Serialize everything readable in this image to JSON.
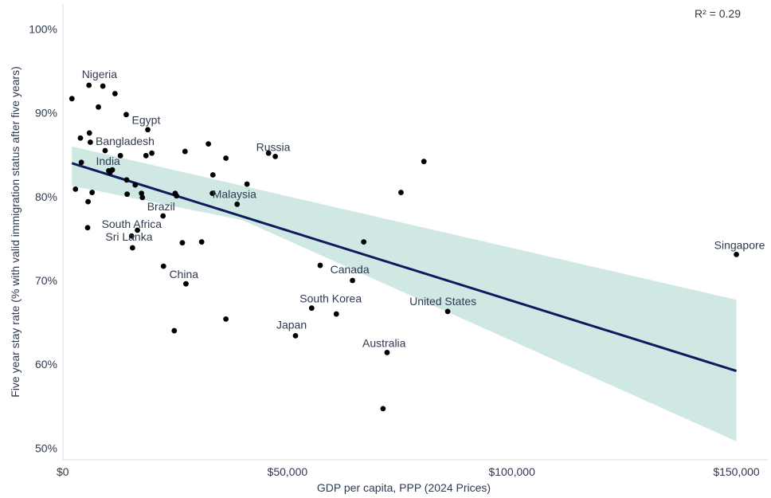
{
  "chart_data": {
    "type": "scatter",
    "xlabel": "GDP per capita, PPP (2024 Prices)",
    "ylabel": "Five year stay rate (% with valid immigration status after five years)",
    "annotation": "R² = 0.29",
    "xlim": [
      0,
      157000
    ],
    "ylim": [
      48.6,
      103.0
    ],
    "x_ticks": [
      0,
      50000,
      100000,
      150000
    ],
    "x_tick_labels": [
      "$0",
      "$50,000",
      "$100,000",
      "$150,000"
    ],
    "y_ticks": [
      50,
      60,
      70,
      80,
      90,
      100
    ],
    "y_tick_labels": [
      "50%",
      "60%",
      "70%",
      "80%",
      "90%",
      "100%"
    ],
    "grid": false,
    "colors": {
      "points": "#000000",
      "trend_line": "#0d1b5c",
      "confidence_band": "#cfe8e4",
      "text": "#2e3a4f",
      "axis": "#d9d9d9"
    },
    "trend": {
      "x": [
        2000,
        150000
      ],
      "y": [
        84.0,
        59.2
      ]
    },
    "band": {
      "x": [
        2000,
        40000,
        150000
      ],
      "upper": [
        86.0,
        81.3,
        67.7
      ],
      "lower": [
        81.3,
        77.2,
        50.8
      ]
    },
    "points": [
      {
        "x": 2000,
        "y": 91.7
      },
      {
        "x": 2800,
        "y": 80.9
      },
      {
        "x": 3900,
        "y": 87.0
      },
      {
        "x": 4100,
        "y": 84.1
      },
      {
        "x": 5500,
        "y": 76.3
      },
      {
        "x": 5600,
        "y": 79.4
      },
      {
        "x": 5800,
        "y": 93.3,
        "label": "Nigeria"
      },
      {
        "x": 5900,
        "y": 87.6
      },
      {
        "x": 6100,
        "y": 86.5
      },
      {
        "x": 6500,
        "y": 80.5
      },
      {
        "x": 7900,
        "y": 90.7
      },
      {
        "x": 8900,
        "y": 93.2
      },
      {
        "x": 9400,
        "y": 85.5,
        "label": "Bangladesh"
      },
      {
        "x": 10200,
        "y": 83.1,
        "label": "India"
      },
      {
        "x": 10500,
        "y": 82.9
      },
      {
        "x": 11000,
        "y": 83.2
      },
      {
        "x": 11600,
        "y": 92.3
      },
      {
        "x": 12800,
        "y": 84.9
      },
      {
        "x": 14100,
        "y": 89.8
      },
      {
        "x": 14200,
        "y": 82.0
      },
      {
        "x": 14300,
        "y": 80.3
      },
      {
        "x": 15300,
        "y": 75.3
      },
      {
        "x": 15500,
        "y": 73.9,
        "label": "Sri Lanka"
      },
      {
        "x": 16100,
        "y": 81.4
      },
      {
        "x": 16600,
        "y": 76.0,
        "label": "South Africa"
      },
      {
        "x": 17500,
        "y": 80.4
      },
      {
        "x": 17700,
        "y": 79.9
      },
      {
        "x": 18500,
        "y": 84.9
      },
      {
        "x": 18900,
        "y": 88.0,
        "label": "Egypt"
      },
      {
        "x": 19800,
        "y": 85.2
      },
      {
        "x": 22300,
        "y": 77.7,
        "label": "Brazil"
      },
      {
        "x": 22400,
        "y": 71.7
      },
      {
        "x": 24800,
        "y": 64.0
      },
      {
        "x": 25000,
        "y": 80.4
      },
      {
        "x": 25300,
        "y": 80.1
      },
      {
        "x": 26600,
        "y": 74.5
      },
      {
        "x": 27200,
        "y": 85.4
      },
      {
        "x": 27400,
        "y": 69.6,
        "label": "China"
      },
      {
        "x": 30900,
        "y": 74.6
      },
      {
        "x": 32400,
        "y": 86.3
      },
      {
        "x": 33300,
        "y": 80.4
      },
      {
        "x": 33400,
        "y": 82.6
      },
      {
        "x": 36300,
        "y": 84.6
      },
      {
        "x": 36300,
        "y": 65.4
      },
      {
        "x": 38800,
        "y": 79.1,
        "label": "Malaysia"
      },
      {
        "x": 41000,
        "y": 81.5
      },
      {
        "x": 45800,
        "y": 85.2
      },
      {
        "x": 47300,
        "y": 84.8,
        "label": "Russia"
      },
      {
        "x": 51800,
        "y": 63.4,
        "label": "Japan"
      },
      {
        "x": 55400,
        "y": 66.7,
        "label": "South Korea"
      },
      {
        "x": 57300,
        "y": 71.8
      },
      {
        "x": 60900,
        "y": 66.0
      },
      {
        "x": 64500,
        "y": 70.0,
        "label": "Canada"
      },
      {
        "x": 67000,
        "y": 74.6
      },
      {
        "x": 71300,
        "y": 54.7
      },
      {
        "x": 72200,
        "y": 61.4,
        "label": "Australia"
      },
      {
        "x": 75300,
        "y": 80.5
      },
      {
        "x": 80400,
        "y": 84.2
      },
      {
        "x": 85700,
        "y": 66.3,
        "label": "United States"
      },
      {
        "x": 150000,
        "y": 73.1,
        "label": "Singapore"
      }
    ]
  }
}
